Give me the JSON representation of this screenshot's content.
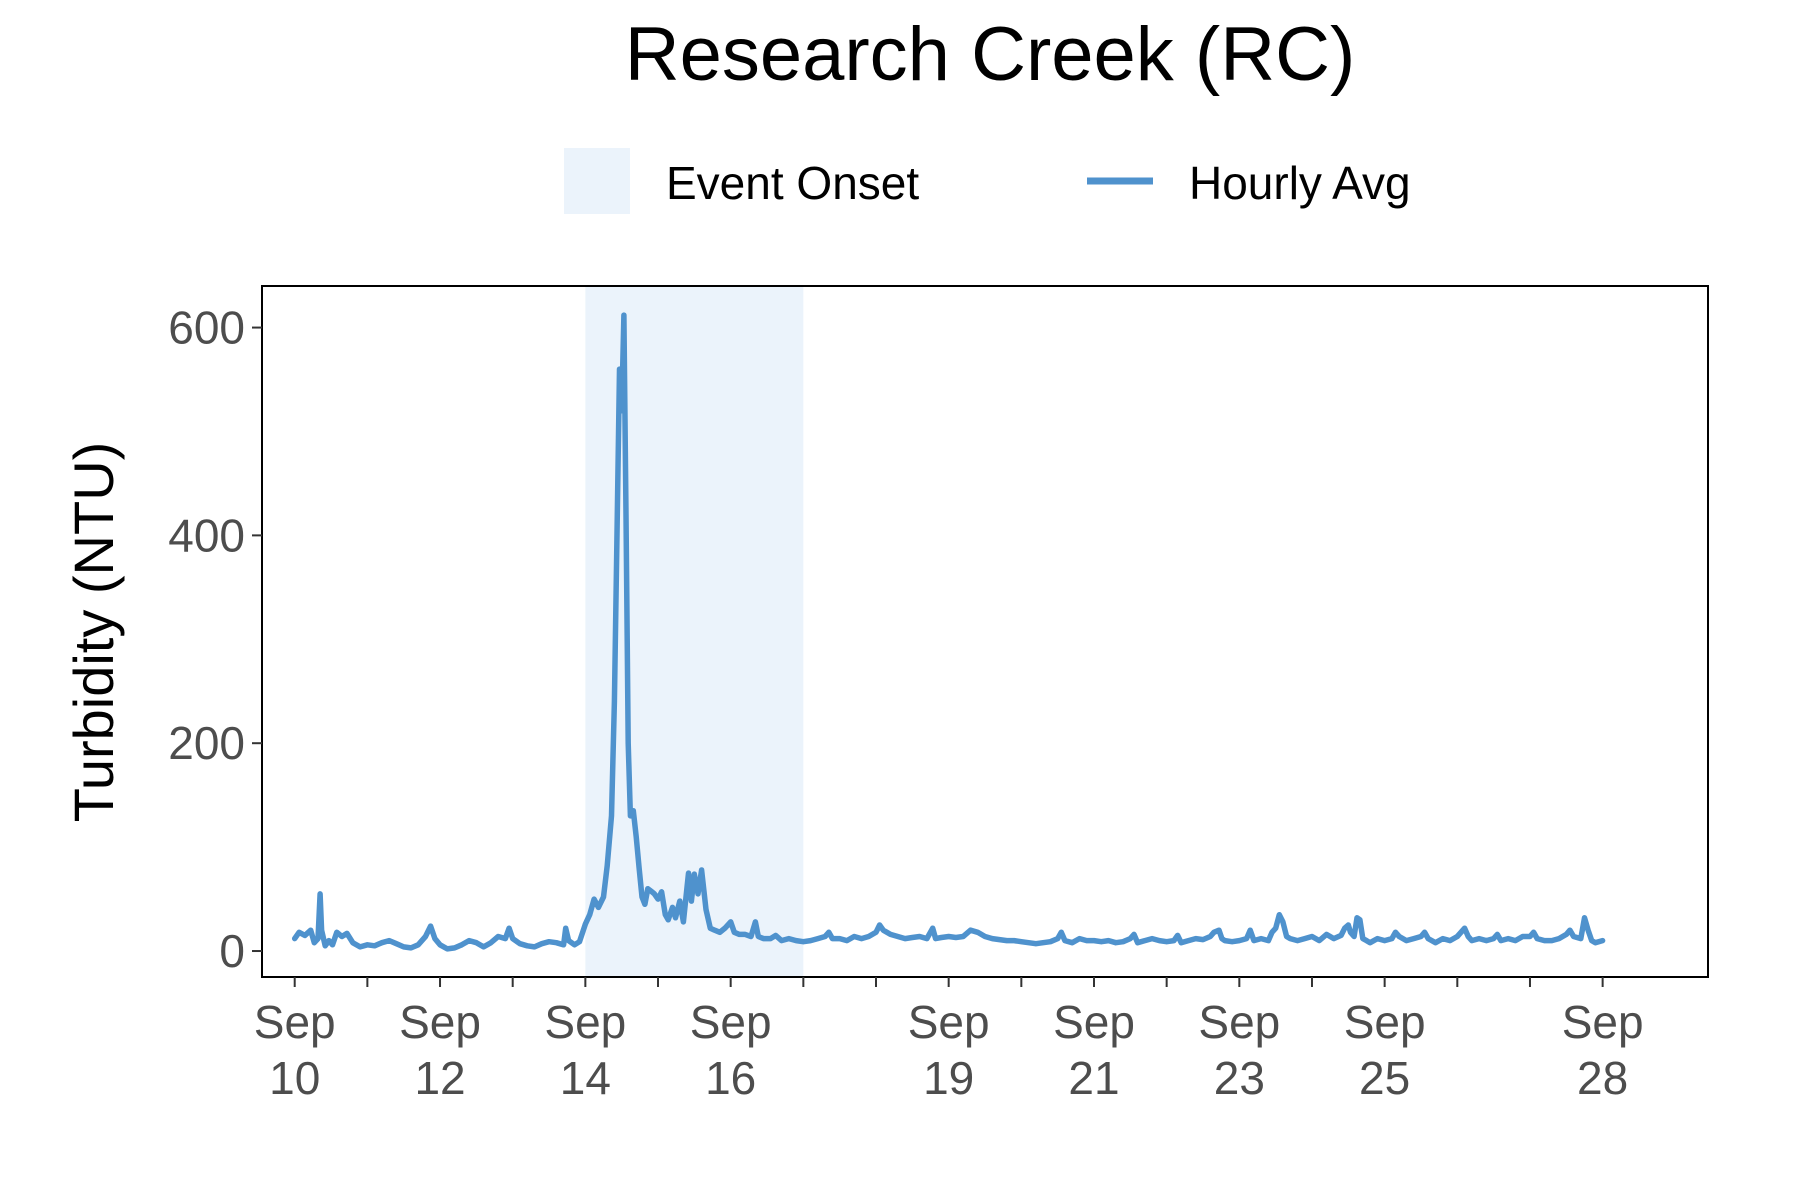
{
  "chart_data": {
    "type": "line",
    "title": "Research Creek (RC)",
    "xlabel": "",
    "ylabel": "Turbidity (NTU)",
    "ylim": [
      -25,
      640
    ],
    "xlim": [
      9.55,
      29.45
    ],
    "x_unit": "day of September",
    "yticks": [
      0,
      200,
      400,
      600
    ],
    "xticks": [
      {
        "x": 10,
        "line1": "Sep",
        "line2": "10"
      },
      {
        "x": 12,
        "line1": "Sep",
        "line2": "12"
      },
      {
        "x": 14,
        "line1": "Sep",
        "line2": "14"
      },
      {
        "x": 16,
        "line1": "Sep",
        "line2": "16"
      },
      {
        "x": 19,
        "line1": "Sep",
        "line2": "19"
      },
      {
        "x": 21,
        "line1": "Sep",
        "line2": "21"
      },
      {
        "x": 23,
        "line1": "Sep",
        "line2": "23"
      },
      {
        "x": 25,
        "line1": "Sep",
        "line2": "25"
      },
      {
        "x": 28,
        "line1": "Sep",
        "line2": "28"
      }
    ],
    "minor_ticks": [
      11,
      13,
      15,
      17,
      18,
      20,
      22,
      24,
      26,
      27
    ],
    "legend": {
      "position": "top",
      "items": [
        {
          "label": "Event Onset",
          "kind": "fill"
        },
        {
          "label": "Hourly Avg",
          "kind": "line"
        }
      ]
    },
    "grid": false,
    "shaded_region": {
      "name": "Event Onset",
      "x_start": 14.0,
      "x_end": 17.0
    },
    "series": [
      {
        "name": "Hourly Avg",
        "points": [
          [
            10.0,
            12
          ],
          [
            10.06,
            18
          ],
          [
            10.14,
            15
          ],
          [
            10.22,
            20
          ],
          [
            10.27,
            8
          ],
          [
            10.32,
            12
          ],
          [
            10.35,
            55
          ],
          [
            10.37,
            20
          ],
          [
            10.42,
            5
          ],
          [
            10.47,
            10
          ],
          [
            10.52,
            6
          ],
          [
            10.58,
            18
          ],
          [
            10.65,
            14
          ],
          [
            10.72,
            17
          ],
          [
            10.8,
            8
          ],
          [
            10.9,
            4
          ],
          [
            11.0,
            6
          ],
          [
            11.1,
            5
          ],
          [
            11.2,
            8
          ],
          [
            11.3,
            10
          ],
          [
            11.4,
            7
          ],
          [
            11.5,
            4
          ],
          [
            11.6,
            3
          ],
          [
            11.7,
            6
          ],
          [
            11.8,
            14
          ],
          [
            11.87,
            24
          ],
          [
            11.93,
            12
          ],
          [
            12.0,
            6
          ],
          [
            12.1,
            2
          ],
          [
            12.2,
            3
          ],
          [
            12.3,
            6
          ],
          [
            12.4,
            10
          ],
          [
            12.5,
            8
          ],
          [
            12.6,
            4
          ],
          [
            12.7,
            8
          ],
          [
            12.8,
            14
          ],
          [
            12.9,
            12
          ],
          [
            12.95,
            22
          ],
          [
            13.0,
            12
          ],
          [
            13.1,
            7
          ],
          [
            13.2,
            5
          ],
          [
            13.3,
            4
          ],
          [
            13.4,
            7
          ],
          [
            13.5,
            9
          ],
          [
            13.6,
            8
          ],
          [
            13.7,
            6
          ],
          [
            13.73,
            22
          ],
          [
            13.77,
            10
          ],
          [
            13.85,
            6
          ],
          [
            13.92,
            9
          ],
          [
            14.0,
            26
          ],
          [
            14.06,
            35
          ],
          [
            14.12,
            50
          ],
          [
            14.18,
            42
          ],
          [
            14.25,
            52
          ],
          [
            14.3,
            82
          ],
          [
            14.36,
            130
          ],
          [
            14.4,
            240
          ],
          [
            14.44,
            420
          ],
          [
            14.47,
            560
          ],
          [
            14.5,
            520
          ],
          [
            14.53,
            612
          ],
          [
            14.56,
            420
          ],
          [
            14.59,
            200
          ],
          [
            14.62,
            130
          ],
          [
            14.66,
            135
          ],
          [
            14.7,
            110
          ],
          [
            14.74,
            80
          ],
          [
            14.78,
            52
          ],
          [
            14.82,
            45
          ],
          [
            14.86,
            60
          ],
          [
            14.9,
            58
          ],
          [
            14.95,
            55
          ],
          [
            15.0,
            50
          ],
          [
            15.05,
            57
          ],
          [
            15.1,
            35
          ],
          [
            15.14,
            30
          ],
          [
            15.2,
            42
          ],
          [
            15.24,
            32
          ],
          [
            15.3,
            48
          ],
          [
            15.35,
            28
          ],
          [
            15.42,
            75
          ],
          [
            15.46,
            48
          ],
          [
            15.5,
            74
          ],
          [
            15.55,
            55
          ],
          [
            15.6,
            78
          ],
          [
            15.66,
            40
          ],
          [
            15.72,
            22
          ],
          [
            15.78,
            20
          ],
          [
            15.85,
            18
          ],
          [
            15.92,
            22
          ],
          [
            16.0,
            28
          ],
          [
            16.05,
            18
          ],
          [
            16.12,
            16
          ],
          [
            16.2,
            16
          ],
          [
            16.28,
            14
          ],
          [
            16.34,
            28
          ],
          [
            16.38,
            14
          ],
          [
            16.45,
            12
          ],
          [
            16.55,
            12
          ],
          [
            16.62,
            15
          ],
          [
            16.7,
            10
          ],
          [
            16.8,
            12
          ],
          [
            16.9,
            10
          ],
          [
            17.0,
            9
          ],
          [
            17.1,
            10
          ],
          [
            17.2,
            12
          ],
          [
            17.3,
            14
          ],
          [
            17.35,
            18
          ],
          [
            17.4,
            12
          ],
          [
            17.5,
            12
          ],
          [
            17.6,
            10
          ],
          [
            17.7,
            14
          ],
          [
            17.8,
            12
          ],
          [
            17.9,
            14
          ],
          [
            18.0,
            18
          ],
          [
            18.05,
            25
          ],
          [
            18.1,
            20
          ],
          [
            18.2,
            16
          ],
          [
            18.3,
            14
          ],
          [
            18.4,
            12
          ],
          [
            18.5,
            13
          ],
          [
            18.6,
            14
          ],
          [
            18.7,
            12
          ],
          [
            18.78,
            22
          ],
          [
            18.82,
            12
          ],
          [
            18.9,
            13
          ],
          [
            19.0,
            14
          ],
          [
            19.1,
            13
          ],
          [
            19.2,
            14
          ],
          [
            19.3,
            20
          ],
          [
            19.4,
            18
          ],
          [
            19.5,
            14
          ],
          [
            19.6,
            12
          ],
          [
            19.7,
            11
          ],
          [
            19.8,
            10
          ],
          [
            19.9,
            10
          ],
          [
            20.0,
            9
          ],
          [
            20.1,
            8
          ],
          [
            20.2,
            7
          ],
          [
            20.3,
            8
          ],
          [
            20.4,
            9
          ],
          [
            20.5,
            12
          ],
          [
            20.55,
            18
          ],
          [
            20.6,
            10
          ],
          [
            20.7,
            8
          ],
          [
            20.8,
            12
          ],
          [
            20.9,
            10
          ],
          [
            21.0,
            10
          ],
          [
            21.1,
            9
          ],
          [
            21.2,
            10
          ],
          [
            21.3,
            8
          ],
          [
            21.4,
            9
          ],
          [
            21.5,
            12
          ],
          [
            21.55,
            16
          ],
          [
            21.6,
            8
          ],
          [
            21.7,
            10
          ],
          [
            21.8,
            12
          ],
          [
            21.9,
            10
          ],
          [
            22.0,
            9
          ],
          [
            22.1,
            10
          ],
          [
            22.15,
            15
          ],
          [
            22.2,
            8
          ],
          [
            22.3,
            10
          ],
          [
            22.4,
            12
          ],
          [
            22.5,
            11
          ],
          [
            22.6,
            14
          ],
          [
            22.65,
            18
          ],
          [
            22.72,
            20
          ],
          [
            22.76,
            12
          ],
          [
            22.8,
            10
          ],
          [
            22.9,
            9
          ],
          [
            23.0,
            10
          ],
          [
            23.1,
            12
          ],
          [
            23.15,
            20
          ],
          [
            23.2,
            10
          ],
          [
            23.3,
            12
          ],
          [
            23.4,
            10
          ],
          [
            23.45,
            18
          ],
          [
            23.5,
            22
          ],
          [
            23.55,
            35
          ],
          [
            23.6,
            28
          ],
          [
            23.65,
            14
          ],
          [
            23.7,
            12
          ],
          [
            23.8,
            10
          ],
          [
            23.9,
            12
          ],
          [
            24.0,
            14
          ],
          [
            24.1,
            10
          ],
          [
            24.2,
            16
          ],
          [
            24.3,
            12
          ],
          [
            24.4,
            15
          ],
          [
            24.45,
            22
          ],
          [
            24.5,
            25
          ],
          [
            24.53,
            18
          ],
          [
            24.58,
            14
          ],
          [
            24.62,
            32
          ],
          [
            24.66,
            30
          ],
          [
            24.7,
            12
          ],
          [
            24.75,
            10
          ],
          [
            24.8,
            8
          ],
          [
            24.9,
            12
          ],
          [
            25.0,
            10
          ],
          [
            25.1,
            12
          ],
          [
            25.15,
            18
          ],
          [
            25.2,
            14
          ],
          [
            25.3,
            10
          ],
          [
            25.4,
            12
          ],
          [
            25.5,
            14
          ],
          [
            25.55,
            18
          ],
          [
            25.6,
            12
          ],
          [
            25.7,
            8
          ],
          [
            25.8,
            12
          ],
          [
            25.9,
            10
          ],
          [
            26.0,
            14
          ],
          [
            26.1,
            22
          ],
          [
            26.15,
            14
          ],
          [
            26.2,
            10
          ],
          [
            26.3,
            12
          ],
          [
            26.4,
            10
          ],
          [
            26.5,
            12
          ],
          [
            26.55,
            16
          ],
          [
            26.6,
            10
          ],
          [
            26.7,
            12
          ],
          [
            26.8,
            10
          ],
          [
            26.9,
            14
          ],
          [
            27.0,
            14
          ],
          [
            27.05,
            18
          ],
          [
            27.1,
            12
          ],
          [
            27.2,
            10
          ],
          [
            27.3,
            10
          ],
          [
            27.4,
            12
          ],
          [
            27.5,
            16
          ],
          [
            27.55,
            20
          ],
          [
            27.6,
            14
          ],
          [
            27.7,
            12
          ],
          [
            27.75,
            32
          ],
          [
            27.8,
            20
          ],
          [
            27.85,
            10
          ],
          [
            27.9,
            8
          ],
          [
            28.0,
            10
          ]
        ]
      }
    ]
  },
  "colors": {
    "line": "#4f92cd",
    "band": "#ebf3fb",
    "axis": "#000000",
    "tick_text": "#4d4d4d"
  }
}
